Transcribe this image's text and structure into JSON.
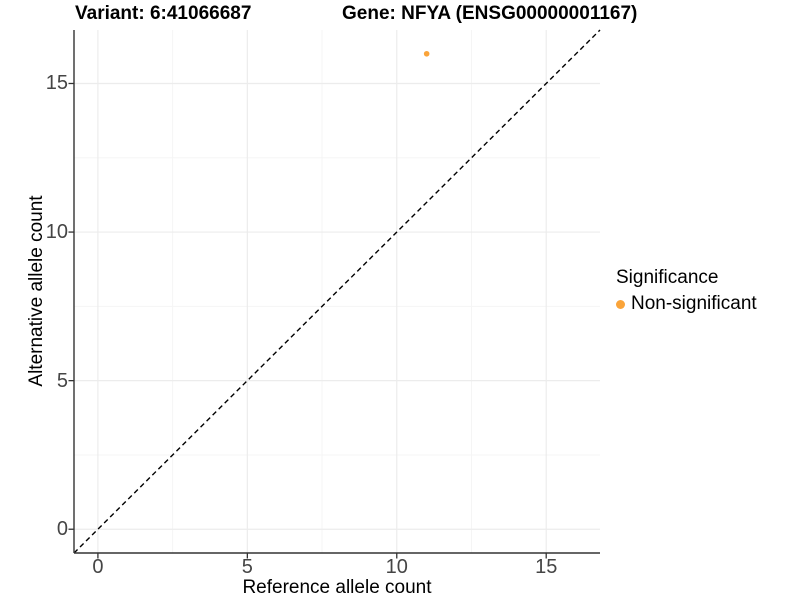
{
  "titles": {
    "variant": "Variant: 6:41066687",
    "gene": "Gene: NFYA (ENSG00000001167)"
  },
  "chart_data": {
    "type": "scatter",
    "xlabel": "Reference allele count",
    "ylabel": "Alternative allele count",
    "xlim": [
      -0.8,
      16.8
    ],
    "ylim": [
      -0.8,
      16.8
    ],
    "xticks": [
      0,
      5,
      10,
      15
    ],
    "yticks": [
      0,
      5,
      10,
      15
    ],
    "xticks_minor": [
      2.5,
      7.5,
      12.5
    ],
    "yticks_minor": [
      2.5,
      7.5,
      12.5
    ],
    "grid": true,
    "legend_position": "right",
    "series": [
      {
        "name": "Non-significant",
        "color": "#FAA43A",
        "point_radius": 2.8,
        "points": [
          {
            "x": 11,
            "y": 16
          }
        ]
      }
    ],
    "reference_line": {
      "type": "identity",
      "slope": 1,
      "intercept": 0,
      "style": "dashed",
      "color": "#000000"
    }
  },
  "legend": {
    "title": "Significance",
    "items": [
      {
        "label": "Non-significant",
        "color": "#FAA43A"
      }
    ]
  },
  "colors": {
    "axis_line": "#333333",
    "tick_mark": "#333333",
    "tick_label": "#454545",
    "grid_major": "#ececec",
    "grid_minor": "#f5f5f5",
    "background": "#ffffff"
  }
}
